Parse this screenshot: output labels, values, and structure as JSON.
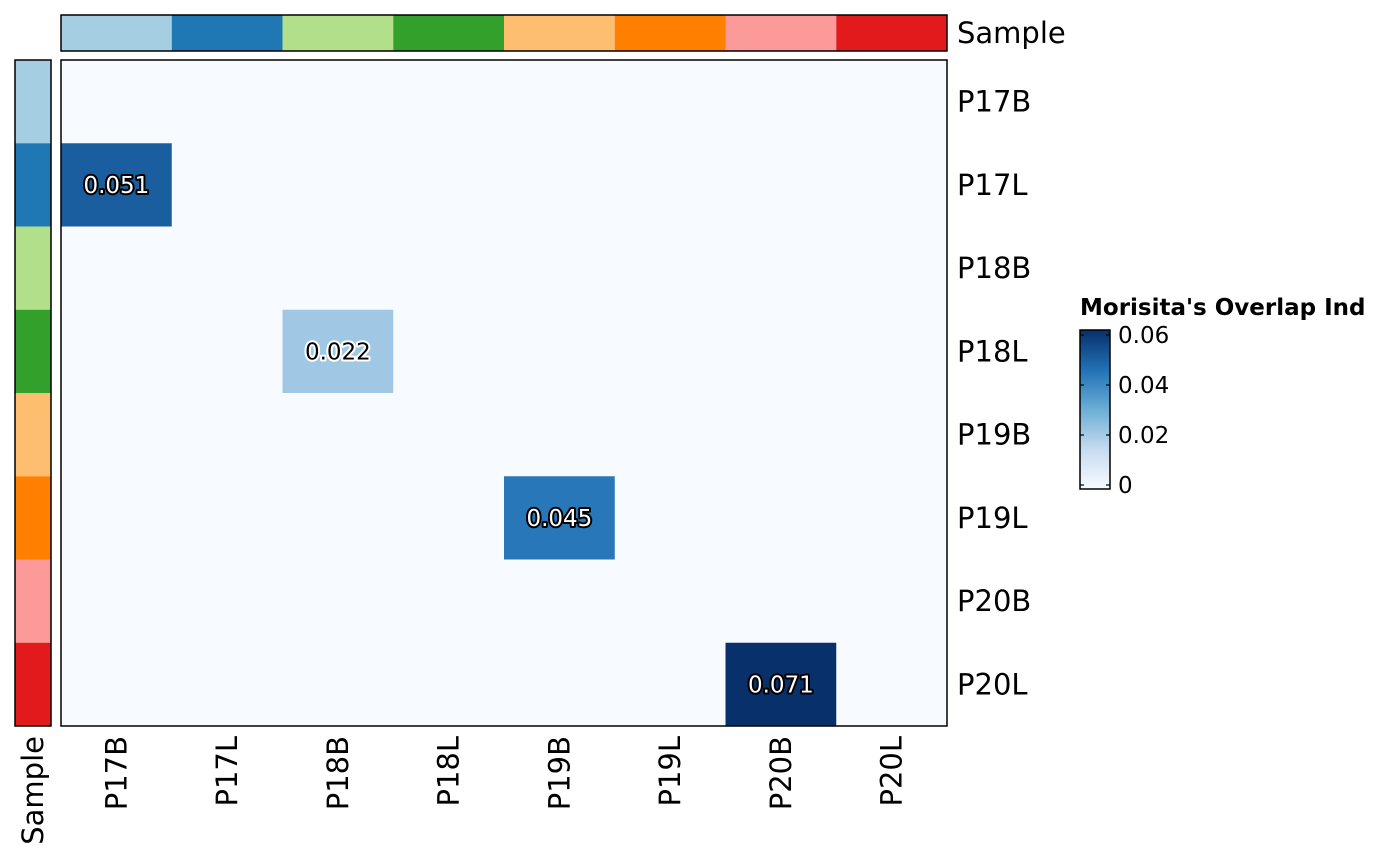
{
  "chart_data": {
    "type": "heatmap",
    "rows": [
      "P17B",
      "P17L",
      "P18B",
      "P18L",
      "P19B",
      "P19L",
      "P20B",
      "P20L"
    ],
    "columns": [
      "P17B",
      "P17L",
      "P18B",
      "P18L",
      "P19B",
      "P19L",
      "P20B",
      "P20L"
    ],
    "cells": [
      {
        "row": "P17L",
        "col": "P17B",
        "value": 0.051,
        "label": "0.051"
      },
      {
        "row": "P18L",
        "col": "P18B",
        "value": 0.022,
        "label": "0.022"
      },
      {
        "row": "P19L",
        "col": "P19B",
        "value": 0.045,
        "label": "0.045"
      },
      {
        "row": "P20L",
        "col": "P20B",
        "value": 0.071,
        "label": "0.071"
      }
    ],
    "background_value": 0,
    "annotation": {
      "name": "Sample",
      "colors": [
        "#A6CEE3",
        "#1F78B4",
        "#B2DF8A",
        "#33A02C",
        "#FDBF6F",
        "#FF7F00",
        "#FB9A99",
        "#E31A1C"
      ]
    },
    "legend": {
      "title": "Morisita's Overlap Ind",
      "ticks": [
        0.06,
        0.04,
        0.02,
        0
      ],
      "tick_labels": [
        "0.06",
        "0.04",
        "0.02",
        "0"
      ],
      "range": [
        0,
        0.062
      ],
      "placement": "right",
      "colors": [
        "#F7FBFF",
        "#C6DBEF",
        "#6BAED6",
        "#2171B5",
        "#08306B"
      ]
    }
  }
}
